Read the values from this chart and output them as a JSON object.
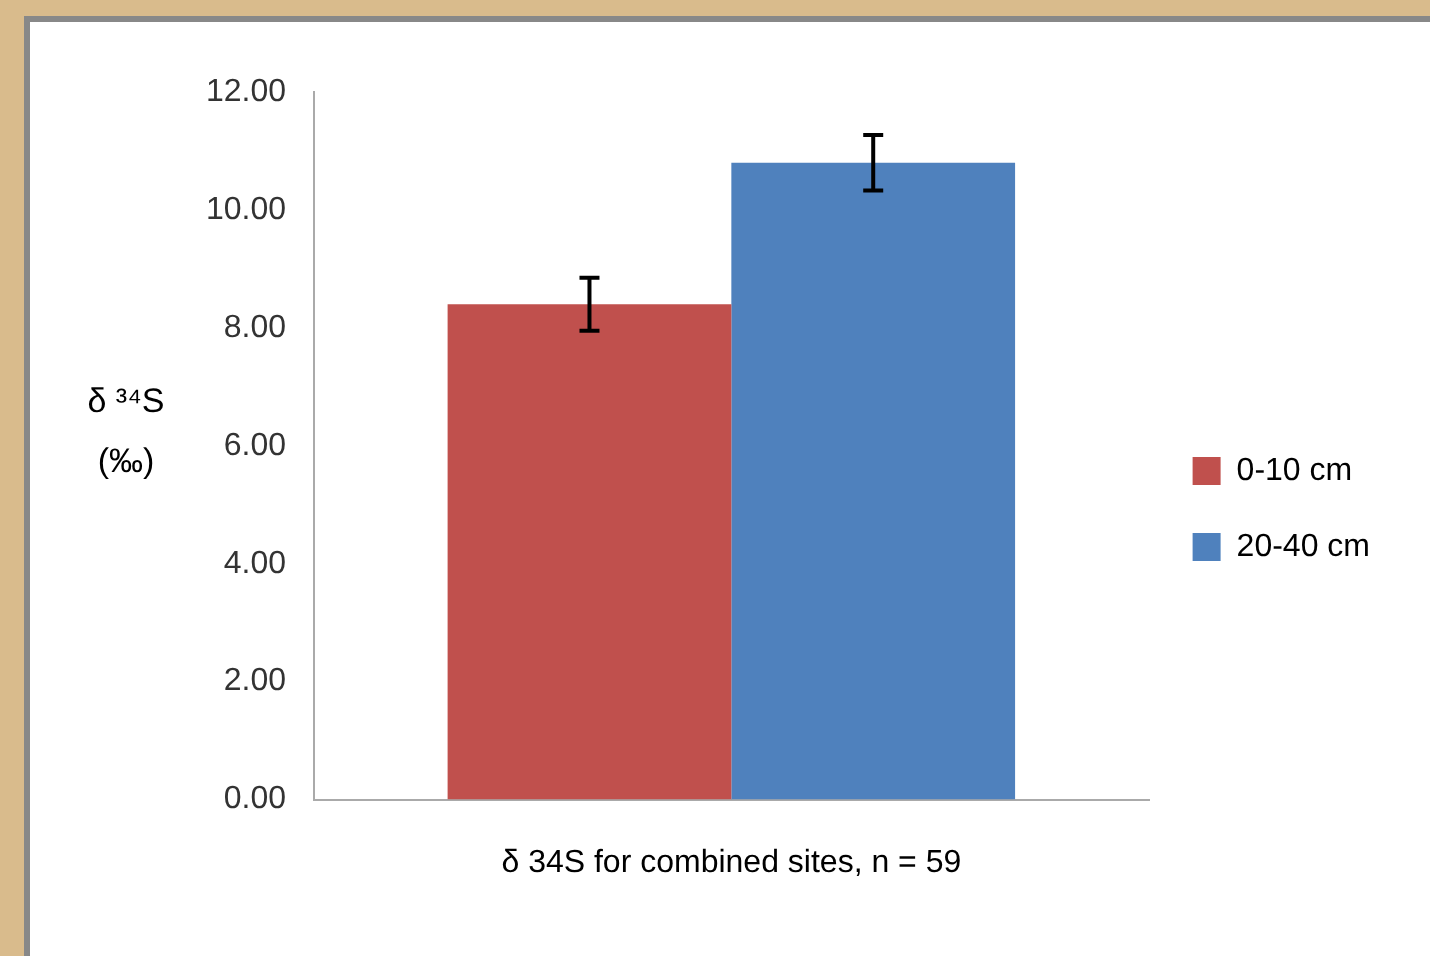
{
  "chart_data": {
    "type": "bar",
    "ylabel": "δ ³⁴S (‰)",
    "categories": [
      "δ 34S for combined sites, n = 59"
    ],
    "series": [
      {
        "name": "0-10 cm",
        "color": "#c0504d",
        "values": [
          8.4
        ],
        "errors": [
          0.45
        ]
      },
      {
        "name": "20-40 cm",
        "color": "#4f81bd",
        "values": [
          10.8
        ],
        "errors": [
          0.47
        ]
      }
    ],
    "ylim": [
      0,
      12
    ],
    "yticks": [
      {
        "value": 0,
        "label": "0.00"
      },
      {
        "value": 2,
        "label": "2.00"
      },
      {
        "value": 4,
        "label": "4.00"
      },
      {
        "value": 6,
        "label": "6.00"
      },
      {
        "value": 8,
        "label": "8.00"
      },
      {
        "value": 10,
        "label": "10.00"
      },
      {
        "value": 12,
        "label": "12.00"
      }
    ],
    "grid": false,
    "legend": "right"
  }
}
